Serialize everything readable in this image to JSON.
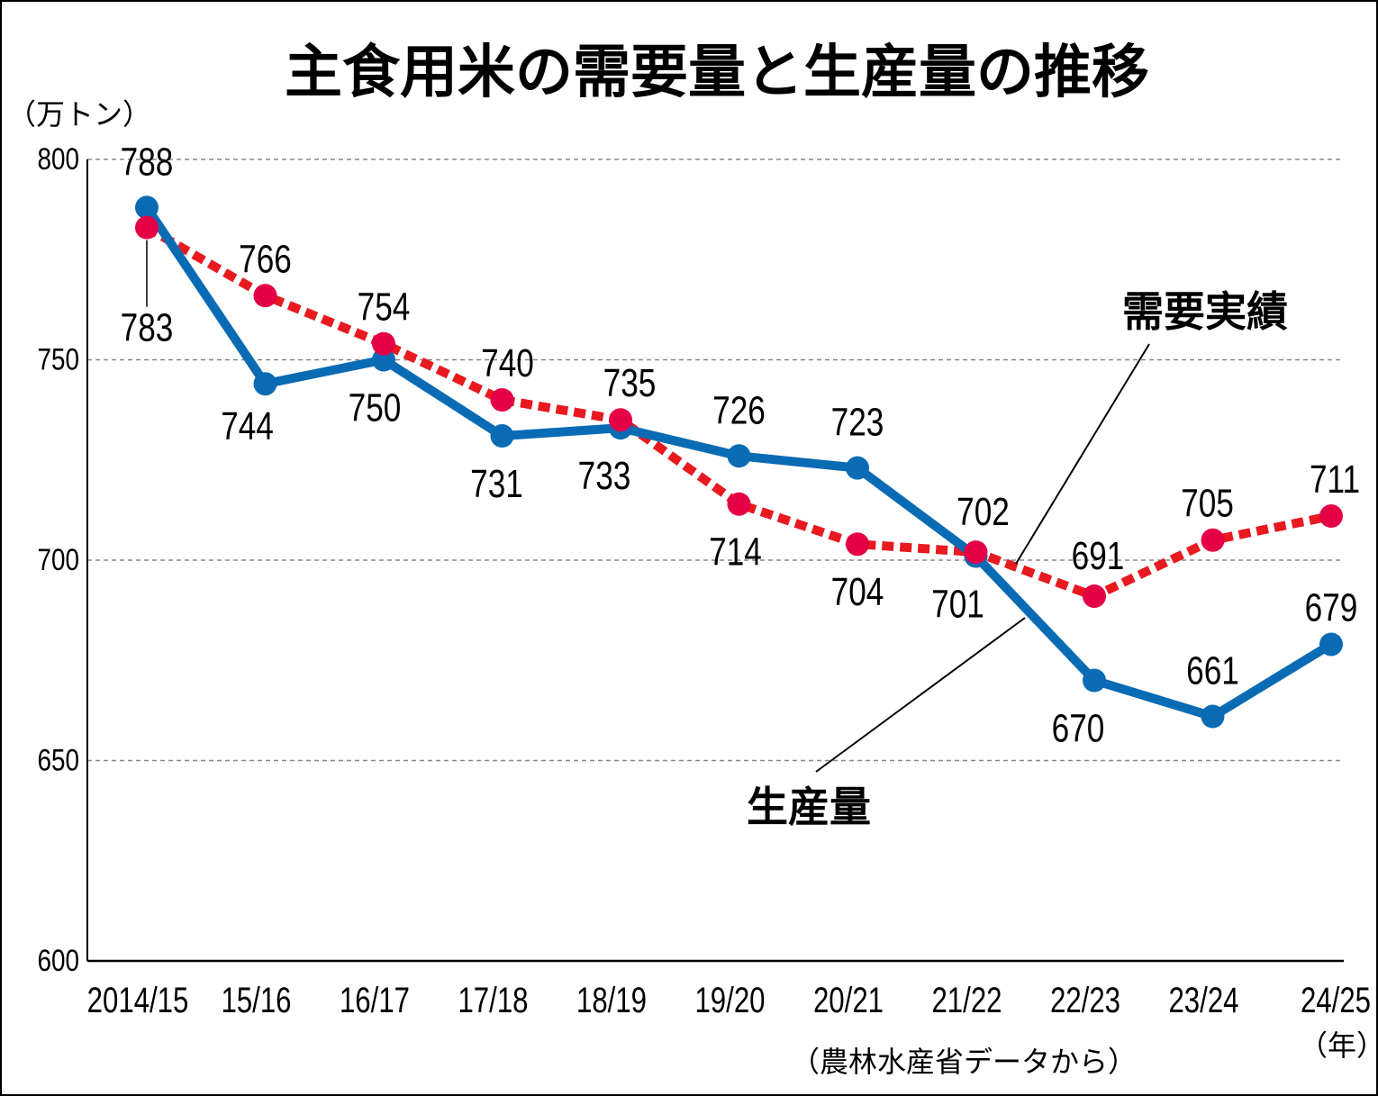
{
  "chart_data": {
    "type": "line",
    "title": "主食用米の需要量と生産量の推移",
    "unit_label": "（万トン）",
    "year_suffix": "（年）",
    "source": "（農林水産省データから）",
    "categories": [
      "2014/15",
      "15/16",
      "16/17",
      "17/18",
      "18/19",
      "19/20",
      "20/21",
      "21/22",
      "22/23",
      "23/24",
      "24/25"
    ],
    "ylim": [
      600,
      800
    ],
    "yticks": [
      600,
      650,
      700,
      750,
      800
    ],
    "grid": true,
    "series": [
      {
        "name": "生産量",
        "color": "#0a6bb5",
        "style": "solid",
        "values": [
          788,
          744,
          750,
          731,
          733,
          726,
          723,
          701,
          670,
          661,
          679
        ]
      },
      {
        "name": "需要実績",
        "color": "#e40046",
        "line_color": "#e8191f",
        "style": "dashed",
        "values": [
          783,
          766,
          754,
          740,
          735,
          714,
          704,
          702,
          691,
          705,
          711
        ]
      }
    ]
  }
}
